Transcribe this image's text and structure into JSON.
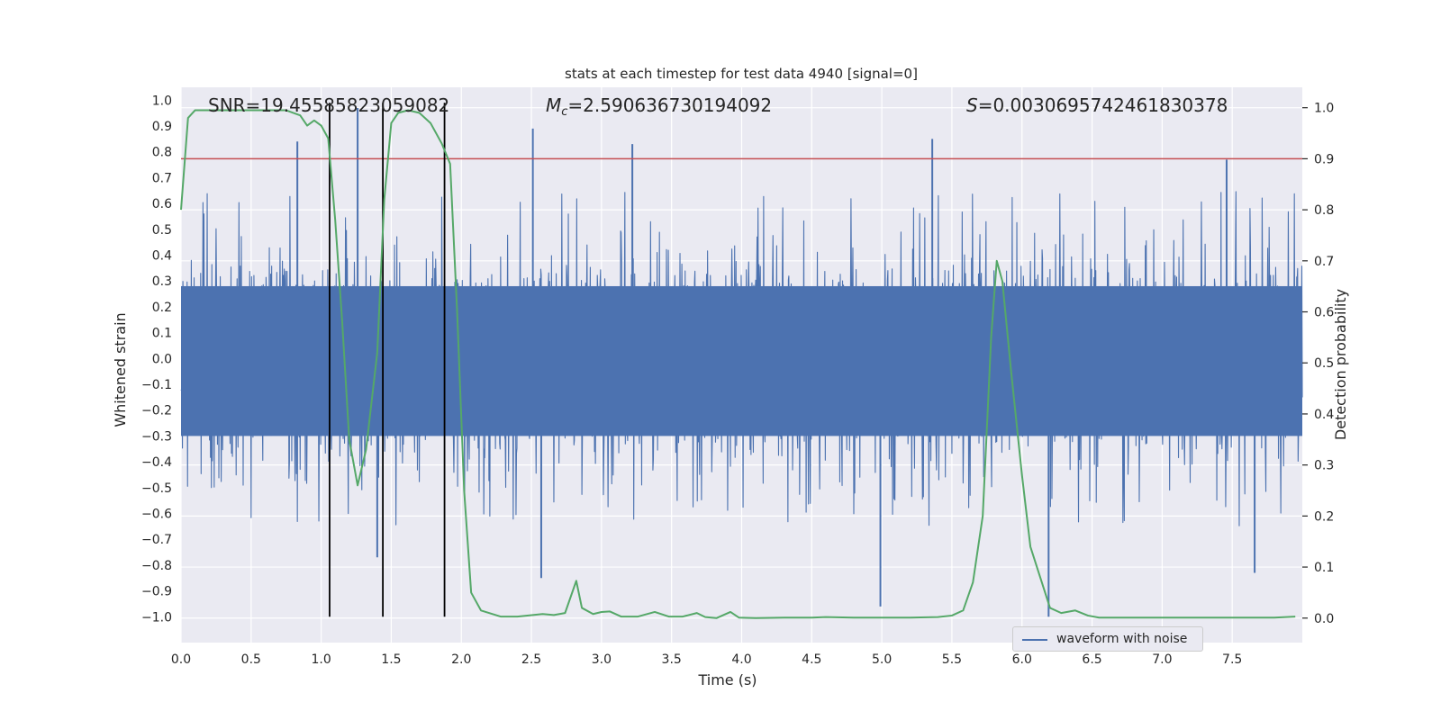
{
  "chart_data": {
    "type": "line",
    "title": "stats at each timestep for test data 4940 [signal=0]",
    "xlabel": "Time (s)",
    "ylabel_left": "Whitened strain",
    "ylabel_right": "Detection probability",
    "xlim": [
      0.0,
      8.0
    ],
    "ylim_left": [
      -1.1,
      1.05
    ],
    "ylim_right": [
      -0.048,
      1.04
    ],
    "x_ticks": [
      "0.0",
      "0.5",
      "1.0",
      "1.5",
      "2.0",
      "2.5",
      "3.0",
      "3.5",
      "4.0",
      "4.5",
      "5.0",
      "5.5",
      "6.0",
      "6.5",
      "7.0",
      "7.5"
    ],
    "y_ticks_left": [
      "1.0",
      "0.9",
      "0.8",
      "0.7",
      "0.6",
      "0.5",
      "0.4",
      "0.3",
      "0.2",
      "0.1",
      "0.0",
      "-0.1",
      "-0.2",
      "-0.3",
      "-0.4",
      "-0.5",
      "-0.6",
      "-0.7",
      "-0.8",
      "-0.9",
      "-1.0"
    ],
    "y_ticks_right": [
      "1.0",
      "0.9",
      "0.8",
      "0.7",
      "0.6",
      "0.5",
      "0.4",
      "0.3",
      "0.2",
      "0.1",
      "0.0"
    ],
    "annotations": {
      "snr": "SNR=19.45585823059082",
      "mc_symbol": "M",
      "mc_sub": "c",
      "mc_value": "=2.590636730194092",
      "s_symbol": "S",
      "s_value": "=0.0030695742461830378"
    },
    "threshold_line": {
      "axis": "right",
      "value": 0.9,
      "color": "#c44e52"
    },
    "vertical_lines": [
      1.06,
      1.44,
      1.88
    ],
    "legend": {
      "label": "waveform with noise",
      "placement": "lower-right"
    },
    "series": [
      {
        "name": "waveform with noise",
        "axis": "left",
        "color": "#4c72b0",
        "style": "dense noise",
        "envelope_typical": [
          -0.45,
          0.45
        ],
        "peaks": [
          {
            "x": 1.26,
            "y": 0.97
          },
          {
            "x": 2.51,
            "y": 0.89
          },
          {
            "x": 3.22,
            "y": 0.83
          },
          {
            "x": 5.36,
            "y": 0.85
          },
          {
            "x": 0.83,
            "y": 0.84
          },
          {
            "x": 7.46,
            "y": 0.77
          },
          {
            "x": 1.4,
            "y": -0.77
          },
          {
            "x": 4.99,
            "y": -0.96
          },
          {
            "x": 6.19,
            "y": -1.0
          },
          {
            "x": 7.66,
            "y": -0.83
          },
          {
            "x": 2.57,
            "y": -0.85
          }
        ]
      },
      {
        "name": "detection probability",
        "axis": "right",
        "color": "#55a868",
        "points": [
          [
            0.0,
            0.8
          ],
          [
            0.05,
            0.98
          ],
          [
            0.1,
            0.995
          ],
          [
            0.2,
            0.995
          ],
          [
            0.4,
            0.995
          ],
          [
            0.6,
            0.995
          ],
          [
            0.75,
            0.995
          ],
          [
            0.85,
            0.985
          ],
          [
            0.9,
            0.965
          ],
          [
            0.95,
            0.975
          ],
          [
            1.0,
            0.965
          ],
          [
            1.05,
            0.94
          ],
          [
            1.1,
            0.78
          ],
          [
            1.15,
            0.58
          ],
          [
            1.2,
            0.35
          ],
          [
            1.26,
            0.26
          ],
          [
            1.32,
            0.33
          ],
          [
            1.4,
            0.52
          ],
          [
            1.45,
            0.82
          ],
          [
            1.5,
            0.97
          ],
          [
            1.55,
            0.99
          ],
          [
            1.62,
            0.995
          ],
          [
            1.7,
            0.99
          ],
          [
            1.78,
            0.97
          ],
          [
            1.86,
            0.93
          ],
          [
            1.92,
            0.89
          ],
          [
            1.97,
            0.6
          ],
          [
            2.02,
            0.25
          ],
          [
            2.07,
            0.05
          ],
          [
            2.14,
            0.015
          ],
          [
            2.28,
            0.003
          ],
          [
            2.4,
            0.003
          ],
          [
            2.58,
            0.008
          ],
          [
            2.66,
            0.006
          ],
          [
            2.74,
            0.01
          ],
          [
            2.82,
            0.073
          ],
          [
            2.86,
            0.02
          ],
          [
            2.94,
            0.008
          ],
          [
            3.0,
            0.012
          ],
          [
            3.06,
            0.013
          ],
          [
            3.14,
            0.003
          ],
          [
            3.26,
            0.003
          ],
          [
            3.38,
            0.012
          ],
          [
            3.48,
            0.003
          ],
          [
            3.58,
            0.003
          ],
          [
            3.68,
            0.01
          ],
          [
            3.74,
            0.002
          ],
          [
            3.82,
            0.0
          ],
          [
            3.92,
            0.012
          ],
          [
            3.98,
            0.001
          ],
          [
            4.1,
            0.0
          ],
          [
            4.3,
            0.001
          ],
          [
            4.5,
            0.001
          ],
          [
            4.6,
            0.002
          ],
          [
            4.8,
            0.001
          ],
          [
            5.0,
            0.001
          ],
          [
            5.2,
            0.001
          ],
          [
            5.4,
            0.002
          ],
          [
            5.5,
            0.005
          ],
          [
            5.58,
            0.015
          ],
          [
            5.65,
            0.07
          ],
          [
            5.72,
            0.2
          ],
          [
            5.78,
            0.55
          ],
          [
            5.82,
            0.7
          ],
          [
            5.86,
            0.66
          ],
          [
            5.92,
            0.49
          ],
          [
            6.0,
            0.28
          ],
          [
            6.06,
            0.14
          ],
          [
            6.13,
            0.08
          ],
          [
            6.2,
            0.02
          ],
          [
            6.28,
            0.01
          ],
          [
            6.38,
            0.015
          ],
          [
            6.47,
            0.005
          ],
          [
            6.55,
            0.001
          ],
          [
            6.7,
            0.001
          ],
          [
            7.0,
            0.001
          ],
          [
            7.5,
            0.001
          ],
          [
            7.8,
            0.001
          ],
          [
            7.95,
            0.003
          ]
        ]
      }
    ]
  }
}
